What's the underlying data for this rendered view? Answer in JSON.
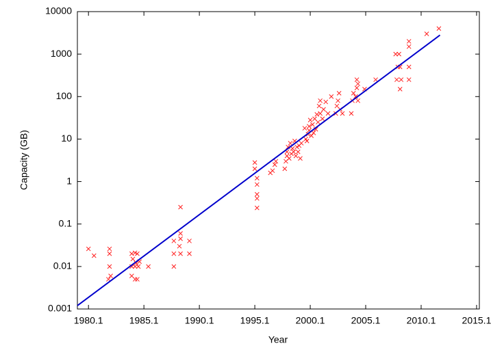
{
  "chart_data": {
    "type": "scatter",
    "xlabel": "Year",
    "ylabel": "Capacity (GB)",
    "xlim": [
      1979.1,
      2015.35
    ],
    "xticks": [
      1980.1,
      1985.1,
      1990.1,
      1995.1,
      2000.1,
      2005.1,
      2010.1,
      2015.1
    ],
    "ylim": [
      0.001,
      10000
    ],
    "yticks": [
      0.001,
      0.01,
      0.1,
      1,
      10,
      100,
      1000,
      10000
    ],
    "ylog": true,
    "series": [
      {
        "kind": "points",
        "color": "#ff2020",
        "x": [
          1980.1,
          1980.6,
          1982.0,
          1982.0,
          1982.0,
          1982.1,
          1981.9,
          1984.0,
          1984.3,
          1984.5,
          1984.1,
          1984.4,
          1984.0,
          1984.3,
          1984.6,
          1984.0,
          1984.3,
          1984.5,
          1984.7,
          1985.5,
          1987.8,
          1988.4,
          1988.4,
          1988.4,
          1988.3,
          1988.4,
          1987.8,
          1987.8,
          1989.2,
          1989.2,
          1995.1,
          1995.1,
          1995.3,
          1995.3,
          1995.3,
          1995.3,
          1995.3,
          1996.5,
          1996.7,
          1996.9,
          1997.0,
          1997.8,
          1997.9,
          1998.0,
          1998.0,
          1998.1,
          1998.2,
          1998.3,
          1998.4,
          1998.5,
          1998.6,
          1998.7,
          1998.8,
          1998.9,
          1999.0,
          1999.1,
          1999.2,
          1999.3,
          1999.6,
          1999.7,
          1999.8,
          1999.9,
          2000.0,
          2000.0,
          2000.1,
          2000.2,
          2000.3,
          2000.4,
          2000.5,
          2000.6,
          2000.7,
          2000.8,
          2000.9,
          2001.0,
          2001.0,
          2001.2,
          2001.3,
          2001.5,
          2001.7,
          2002.0,
          2002.4,
          2002.5,
          2002.6,
          2002.7,
          2002.8,
          2003.0,
          2003.8,
          2003.9,
          2004.0,
          2004.2,
          2004.3,
          2004.3,
          2004.4,
          2004.4,
          2005.0,
          2006.0,
          2007.8,
          2008.0,
          2007.9,
          2008.1,
          2008.2,
          2008.3,
          2008.2,
          2009.0,
          2009.0,
          2009.0,
          2009.0,
          2010.6,
          2011.7
        ],
        "values": [
          0.026,
          0.018,
          0.026,
          0.02,
          0.01,
          0.006,
          0.005,
          0.02,
          0.021,
          0.02,
          0.015,
          0.012,
          0.01,
          0.01,
          0.01,
          0.006,
          0.005,
          0.005,
          0.013,
          0.01,
          0.04,
          0.25,
          0.06,
          0.045,
          0.03,
          0.02,
          0.02,
          0.01,
          0.04,
          0.02,
          2.8,
          2,
          1.2,
          0.85,
          0.5,
          0.4,
          0.24,
          1.6,
          1.8,
          2.5,
          3,
          2,
          3,
          4,
          5,
          6.5,
          3.5,
          8,
          4.5,
          6,
          5,
          9,
          4,
          6.5,
          5,
          7,
          3.5,
          8,
          18,
          10,
          9,
          13,
          16,
          20,
          28,
          12,
          22,
          14,
          30,
          17,
          38,
          25,
          60,
          40,
          80,
          30,
          50,
          75,
          40,
          100,
          40,
          60,
          80,
          120,
          50,
          40,
          40,
          80,
          120,
          100,
          160,
          250,
          80,
          200,
          150,
          250,
          1000,
          500,
          250,
          1000,
          150,
          250,
          500,
          2000,
          1500,
          500,
          250,
          3000,
          4000
        ]
      },
      {
        "kind": "line",
        "color": "#0000cc",
        "x": [
          1979.1,
          2011.8
        ],
        "values": [
          0.0012,
          2800
        ]
      }
    ]
  }
}
